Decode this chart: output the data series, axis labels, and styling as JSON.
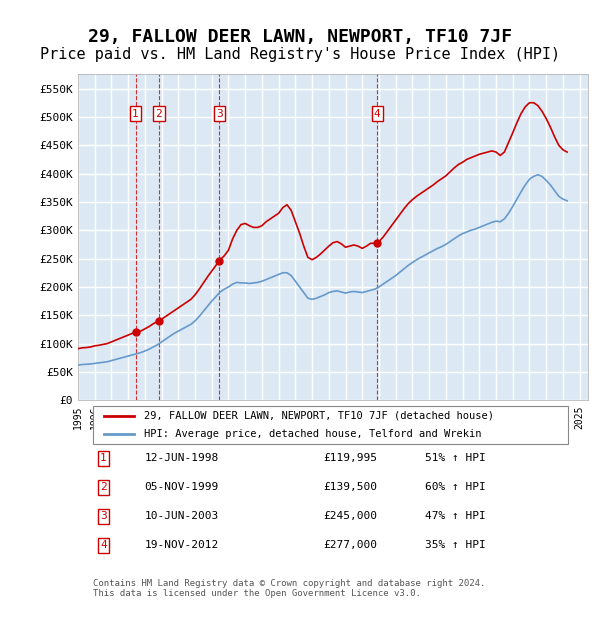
{
  "title": "29, FALLOW DEER LAWN, NEWPORT, TF10 7JF",
  "subtitle": "Price paid vs. HM Land Registry's House Price Index (HPI)",
  "title_fontsize": 13,
  "subtitle_fontsize": 11,
  "background_color": "#ffffff",
  "plot_bg_color": "#dce9f5",
  "grid_color": "#ffffff",
  "ylabel_vals": [
    0,
    50000,
    100000,
    150000,
    200000,
    250000,
    300000,
    350000,
    400000,
    450000,
    500000,
    550000
  ],
  "ylabel_labels": [
    "£0",
    "£50K",
    "£100K",
    "£150K",
    "£200K",
    "£250K",
    "£300K",
    "£350K",
    "£400K",
    "£450K",
    "£500K",
    "£550K"
  ],
  "xlim_start": 1995.0,
  "xlim_end": 2025.5,
  "ylim_min": 0,
  "ylim_max": 575000,
  "hpi_color": "#6699cc",
  "price_color": "#cc0000",
  "sale_marker_color": "#cc0000",
  "sale_vline_color": "#cc0000",
  "transactions": [
    {
      "label": "1",
      "date_dec": 1998.44,
      "price": 119995
    },
    {
      "label": "2",
      "date_dec": 1999.84,
      "price": 139500
    },
    {
      "label": "3",
      "date_dec": 2003.44,
      "price": 245000
    },
    {
      "label": "4",
      "date_dec": 2012.89,
      "price": 277000
    }
  ],
  "legend_line1": "29, FALLOW DEER LAWN, NEWPORT, TF10 7JF (detached house)",
  "legend_line2": "HPI: Average price, detached house, Telford and Wrekin",
  "table_rows": [
    {
      "num": "1",
      "date": "12-JUN-1998",
      "price": "£119,995",
      "hpi": "51% ↑ HPI"
    },
    {
      "num": "2",
      "date": "05-NOV-1999",
      "price": "£139,500",
      "hpi": "60% ↑ HPI"
    },
    {
      "num": "3",
      "date": "10-JUN-2003",
      "price": "£245,000",
      "hpi": "47% ↑ HPI"
    },
    {
      "num": "4",
      "date": "19-NOV-2012",
      "price": "£277,000",
      "hpi": "35% ↑ HPI"
    }
  ],
  "footer": "Contains HM Land Registry data © Crown copyright and database right 2024.\nThis data is licensed under the Open Government Licence v3.0.",
  "hpi_data": {
    "years": [
      1995.0,
      1995.25,
      1995.5,
      1995.75,
      1996.0,
      1996.25,
      1996.5,
      1996.75,
      1997.0,
      1997.25,
      1997.5,
      1997.75,
      1998.0,
      1998.25,
      1998.5,
      1998.75,
      1999.0,
      1999.25,
      1999.5,
      1999.75,
      2000.0,
      2000.25,
      2000.5,
      2000.75,
      2001.0,
      2001.25,
      2001.5,
      2001.75,
      2002.0,
      2002.25,
      2002.5,
      2002.75,
      2003.0,
      2003.25,
      2003.5,
      2003.75,
      2004.0,
      2004.25,
      2004.5,
      2004.75,
      2005.0,
      2005.25,
      2005.5,
      2005.75,
      2006.0,
      2006.25,
      2006.5,
      2006.75,
      2007.0,
      2007.25,
      2007.5,
      2007.75,
      2008.0,
      2008.25,
      2008.5,
      2008.75,
      2009.0,
      2009.25,
      2009.5,
      2009.75,
      2010.0,
      2010.25,
      2010.5,
      2010.75,
      2011.0,
      2011.25,
      2011.5,
      2011.75,
      2012.0,
      2012.25,
      2012.5,
      2012.75,
      2013.0,
      2013.25,
      2013.5,
      2013.75,
      2014.0,
      2014.25,
      2014.5,
      2014.75,
      2015.0,
      2015.25,
      2015.5,
      2015.75,
      2016.0,
      2016.25,
      2016.5,
      2016.75,
      2017.0,
      2017.25,
      2017.5,
      2017.75,
      2018.0,
      2018.25,
      2018.5,
      2018.75,
      2019.0,
      2019.25,
      2019.5,
      2019.75,
      2020.0,
      2020.25,
      2020.5,
      2020.75,
      2021.0,
      2021.25,
      2021.5,
      2021.75,
      2022.0,
      2022.25,
      2022.5,
      2022.75,
      2023.0,
      2023.25,
      2023.5,
      2023.75,
      2024.0,
      2024.25
    ],
    "values": [
      62000,
      63000,
      63500,
      64000,
      65000,
      66000,
      67000,
      68000,
      70000,
      72000,
      74000,
      76000,
      78000,
      80000,
      82000,
      84000,
      87000,
      90000,
      94000,
      98000,
      103000,
      108000,
      113000,
      118000,
      122000,
      126000,
      130000,
      134000,
      140000,
      148000,
      157000,
      166000,
      175000,
      183000,
      191000,
      196000,
      200000,
      205000,
      208000,
      207000,
      207000,
      206000,
      207000,
      208000,
      210000,
      213000,
      216000,
      219000,
      222000,
      225000,
      225000,
      220000,
      210000,
      200000,
      190000,
      180000,
      178000,
      180000,
      183000,
      186000,
      190000,
      192000,
      193000,
      191000,
      189000,
      191000,
      192000,
      191000,
      190000,
      192000,
      194000,
      196000,
      200000,
      205000,
      210000,
      215000,
      220000,
      226000,
      232000,
      238000,
      243000,
      248000,
      252000,
      256000,
      260000,
      264000,
      268000,
      271000,
      275000,
      280000,
      285000,
      290000,
      294000,
      297000,
      300000,
      302000,
      305000,
      308000,
      311000,
      314000,
      316000,
      315000,
      320000,
      330000,
      342000,
      355000,
      368000,
      380000,
      390000,
      395000,
      398000,
      395000,
      388000,
      380000,
      370000,
      360000,
      355000,
      352000
    ]
  },
  "price_index_data": {
    "years": [
      1995.0,
      1995.25,
      1995.5,
      1995.75,
      1996.0,
      1996.25,
      1996.5,
      1996.75,
      1997.0,
      1997.25,
      1997.5,
      1997.75,
      1998.0,
      1998.25,
      1998.44,
      1998.5,
      1998.75,
      1999.0,
      1999.25,
      1999.5,
      1999.75,
      1999.84,
      2000.0,
      2000.25,
      2000.5,
      2000.75,
      2001.0,
      2001.25,
      2001.5,
      2001.75,
      2002.0,
      2002.25,
      2002.5,
      2002.75,
      2003.0,
      2003.25,
      2003.44,
      2003.5,
      2003.75,
      2004.0,
      2004.25,
      2004.5,
      2004.75,
      2005.0,
      2005.25,
      2005.5,
      2005.75,
      2006.0,
      2006.25,
      2006.5,
      2006.75,
      2007.0,
      2007.25,
      2007.5,
      2007.75,
      2008.0,
      2008.25,
      2008.5,
      2008.75,
      2009.0,
      2009.25,
      2009.5,
      2009.75,
      2010.0,
      2010.25,
      2010.5,
      2010.75,
      2011.0,
      2011.25,
      2011.5,
      2011.75,
      2012.0,
      2012.25,
      2012.5,
      2012.75,
      2012.89,
      2013.0,
      2013.25,
      2013.5,
      2013.75,
      2014.0,
      2014.25,
      2014.5,
      2014.75,
      2015.0,
      2015.25,
      2015.5,
      2015.75,
      2016.0,
      2016.25,
      2016.5,
      2016.75,
      2017.0,
      2017.25,
      2017.5,
      2017.75,
      2018.0,
      2018.25,
      2018.5,
      2018.75,
      2019.0,
      2019.25,
      2019.5,
      2019.75,
      2020.0,
      2020.25,
      2020.5,
      2020.75,
      2021.0,
      2021.25,
      2021.5,
      2021.75,
      2022.0,
      2022.25,
      2022.5,
      2022.75,
      2023.0,
      2023.25,
      2023.5,
      2023.75,
      2024.0,
      2024.25
    ],
    "values": [
      91000,
      92500,
      93000,
      94000,
      96000,
      97000,
      98500,
      100000,
      103000,
      106000,
      109000,
      112000,
      115000,
      118000,
      119995,
      120000,
      122000,
      126000,
      130000,
      135000,
      139000,
      139500,
      143000,
      148000,
      153000,
      158000,
      163000,
      168000,
      173000,
      178000,
      186000,
      196000,
      207000,
      218000,
      228000,
      238000,
      245000,
      248000,
      255000,
      265000,
      285000,
      300000,
      310000,
      312000,
      308000,
      305000,
      305000,
      308000,
      315000,
      320000,
      325000,
      330000,
      340000,
      345000,
      335000,
      315000,
      295000,
      272000,
      252000,
      248000,
      252000,
      258000,
      265000,
      272000,
      278000,
      280000,
      276000,
      270000,
      272000,
      274000,
      272000,
      268000,
      272000,
      277000,
      277000,
      277000,
      280000,
      288000,
      298000,
      308000,
      318000,
      328000,
      338000,
      347000,
      354000,
      360000,
      365000,
      370000,
      375000,
      380000,
      386000,
      391000,
      396000,
      403000,
      410000,
      416000,
      420000,
      425000,
      428000,
      431000,
      434000,
      436000,
      438000,
      440000,
      438000,
      432000,
      438000,
      455000,
      472000,
      490000,
      506000,
      518000,
      525000,
      525000,
      520000,
      510000,
      497000,
      482000,
      465000,
      450000,
      442000,
      438000
    ]
  }
}
